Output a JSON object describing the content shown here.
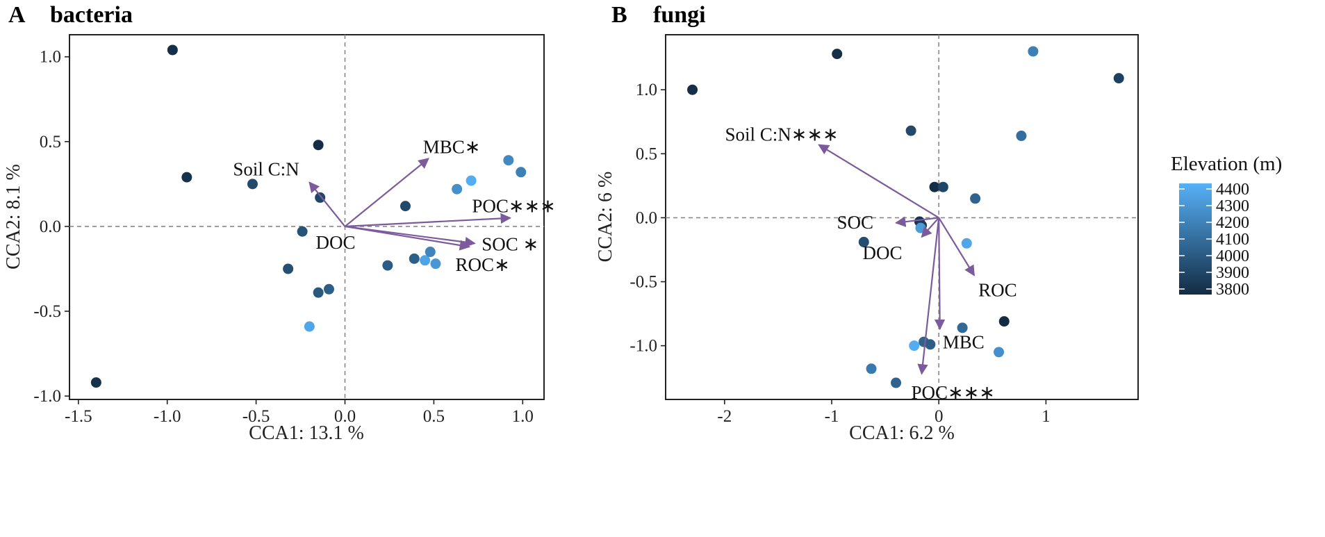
{
  "chart_data": [
    {
      "type": "scatter",
      "panel": "A",
      "title": "bacteria",
      "xlabel": "CCA1: 13.1 %",
      "ylabel": "CCA2: 8.1 %",
      "xlim": [
        -1.55,
        1.12
      ],
      "ylim": [
        -1.02,
        1.13
      ],
      "xticks": [
        -1.5,
        -1.0,
        -0.5,
        0.0,
        0.5,
        1.0
      ],
      "xtick_labels": [
        "-1.5",
        "-1.0",
        "-0.5",
        "0.0",
        "0.5",
        "1.0"
      ],
      "yticks": [
        -1.0,
        -0.5,
        0.0,
        0.5,
        1.0
      ],
      "ytick_labels": [
        "-1.0",
        "-0.5",
        "0.0",
        "0.5",
        "1.0"
      ],
      "points": [
        {
          "x": -0.97,
          "y": 1.04,
          "elev": 3820
        },
        {
          "x": -1.4,
          "y": -0.92,
          "elev": 3830
        },
        {
          "x": -0.89,
          "y": 0.29,
          "elev": 3830
        },
        {
          "x": -0.52,
          "y": 0.25,
          "elev": 3940
        },
        {
          "x": -0.15,
          "y": 0.48,
          "elev": 3810
        },
        {
          "x": -0.14,
          "y": 0.17,
          "elev": 3920
        },
        {
          "x": -0.24,
          "y": -0.03,
          "elev": 3980
        },
        {
          "x": -0.32,
          "y": -0.25,
          "elev": 3960
        },
        {
          "x": -0.15,
          "y": -0.39,
          "elev": 4000
        },
        {
          "x": -0.09,
          "y": -0.37,
          "elev": 4030
        },
        {
          "x": -0.2,
          "y": -0.59,
          "elev": 4350
        },
        {
          "x": 0.34,
          "y": 0.12,
          "elev": 3930
        },
        {
          "x": 0.24,
          "y": -0.23,
          "elev": 4020
        },
        {
          "x": 0.39,
          "y": -0.19,
          "elev": 4030
        },
        {
          "x": 0.45,
          "y": -0.2,
          "elev": 4340
        },
        {
          "x": 0.48,
          "y": -0.15,
          "elev": 4200
        },
        {
          "x": 0.51,
          "y": -0.22,
          "elev": 4280
        },
        {
          "x": 0.63,
          "y": 0.22,
          "elev": 4250
        },
        {
          "x": 0.71,
          "y": 0.27,
          "elev": 4380
        },
        {
          "x": 0.92,
          "y": 0.39,
          "elev": 4220
        },
        {
          "x": 0.99,
          "y": 0.32,
          "elev": 4180
        }
      ],
      "vectors": [
        {
          "label": "Soil C:N",
          "x": -0.2,
          "y": 0.26
        },
        {
          "label": "MBC∗",
          "x": 0.47,
          "y": 0.4
        },
        {
          "label": "POC∗∗∗",
          "x": 0.93,
          "y": 0.05
        },
        {
          "label": "SOC ∗",
          "x": 0.73,
          "y": -0.1
        },
        {
          "label": "ROC∗",
          "x": 0.7,
          "y": -0.12
        },
        {
          "label": "DOC",
          "x": 0.0,
          "y": 0.0,
          "label_only": true
        }
      ]
    },
    {
      "type": "scatter",
      "panel": "B",
      "title": "fungi",
      "xlabel": "CCA1: 6.2 %",
      "ylabel": "CCA2: 6 %",
      "xlim": [
        -2.55,
        1.86
      ],
      "ylim": [
        -1.42,
        1.43
      ],
      "xticks": [
        -2,
        -1,
        0,
        1
      ],
      "xtick_labels": [
        "-2",
        "-1",
        "0",
        "1"
      ],
      "yticks": [
        -1.0,
        -0.5,
        0.0,
        0.5,
        1.0
      ],
      "ytick_labels": [
        "-1.0",
        "-0.5",
        "0.0",
        "0.5",
        "1.0"
      ],
      "points": [
        {
          "x": -2.3,
          "y": 1.0,
          "elev": 3820
        },
        {
          "x": -0.95,
          "y": 1.28,
          "elev": 3820
        },
        {
          "x": 0.88,
          "y": 1.3,
          "elev": 4180
        },
        {
          "x": 1.68,
          "y": 1.09,
          "elev": 3900
        },
        {
          "x": -0.26,
          "y": 0.68,
          "elev": 3930
        },
        {
          "x": 0.77,
          "y": 0.64,
          "elev": 4100
        },
        {
          "x": -0.04,
          "y": 0.24,
          "elev": 3810
        },
        {
          "x": 0.04,
          "y": 0.24,
          "elev": 3920
        },
        {
          "x": 0.34,
          "y": 0.15,
          "elev": 4050
        },
        {
          "x": -0.18,
          "y": -0.03,
          "elev": 3830
        },
        {
          "x": -0.16,
          "y": -0.06,
          "elev": 3870
        },
        {
          "x": -0.17,
          "y": -0.08,
          "elev": 4300
        },
        {
          "x": -0.7,
          "y": -0.19,
          "elev": 3950
        },
        {
          "x": 0.26,
          "y": -0.2,
          "elev": 4350
        },
        {
          "x": 0.61,
          "y": -0.81,
          "elev": 3800
        },
        {
          "x": 0.22,
          "y": -0.86,
          "elev": 4080
        },
        {
          "x": -0.14,
          "y": -0.97,
          "elev": 4050
        },
        {
          "x": -0.08,
          "y": -0.99,
          "elev": 4030
        },
        {
          "x": -0.23,
          "y": -1.0,
          "elev": 4380
        },
        {
          "x": 0.56,
          "y": -1.05,
          "elev": 4250
        },
        {
          "x": -0.63,
          "y": -1.18,
          "elev": 4150
        },
        {
          "x": -0.4,
          "y": -1.29,
          "elev": 4050
        }
      ],
      "vectors": [
        {
          "label": "Soil C:N∗∗∗",
          "x": -1.12,
          "y": 0.57
        },
        {
          "label": "SOC",
          "x": -0.4,
          "y": -0.04
        },
        {
          "label": "DOC",
          "x": -0.16,
          "y": -0.15
        },
        {
          "label": "ROC",
          "x": 0.33,
          "y": -0.45
        },
        {
          "label": "MBC",
          "x": 0.01,
          "y": -0.87
        },
        {
          "label": "POC∗∗∗",
          "x": -0.16,
          "y": -1.22
        }
      ]
    }
  ],
  "legend": {
    "title": "Elevation  (m)",
    "min": 3800,
    "max": 4400,
    "tick_labels": [
      "4400",
      "4300",
      "4200",
      "4100",
      "4000",
      "3900",
      "3800"
    ],
    "low_color": "#132B43",
    "high_color": "#56B1F7"
  },
  "colors": {
    "arrow": "#7B5B9C",
    "zero_line": "#888888"
  }
}
